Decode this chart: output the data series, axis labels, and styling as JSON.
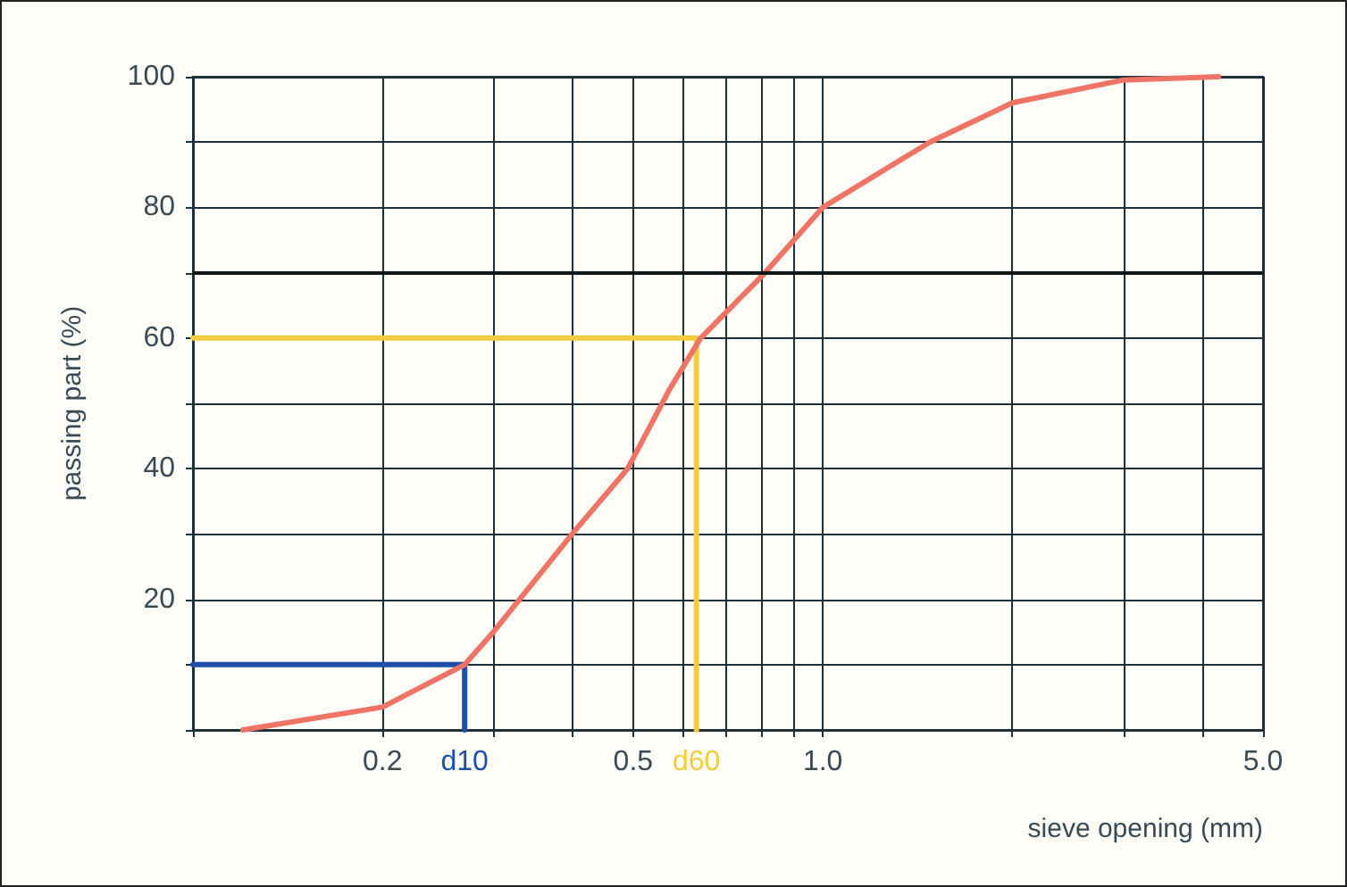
{
  "chart_data": {
    "type": "line",
    "xlabel": "sieve opening (mm)",
    "ylabel": "passing part (%)",
    "log": "x",
    "grid": true,
    "marker": "none",
    "xlim": [
      0.1,
      5
    ],
    "ylim": [
      0,
      100
    ],
    "xticks": [
      {
        "value": 0.1,
        "label": null
      },
      {
        "value": 0.2,
        "label": "0.2"
      },
      {
        "value": 0.3,
        "label": null
      },
      {
        "value": 0.4,
        "label": null
      },
      {
        "value": 0.5,
        "label": "0.5"
      },
      {
        "value": 0.6,
        "label": null
      },
      {
        "value": 0.7,
        "label": null
      },
      {
        "value": 0.8,
        "label": null
      },
      {
        "value": 0.9,
        "label": null
      },
      {
        "value": 1,
        "label": "1.0"
      },
      {
        "value": 2,
        "label": null
      },
      {
        "value": 3,
        "label": null
      },
      {
        "value": 4,
        "label": null
      },
      {
        "value": 5,
        "label": "5.0"
      }
    ],
    "yticks": [
      {
        "value": 0,
        "label": null
      },
      {
        "value": 10,
        "label": null
      },
      20,
      {
        "value": 30,
        "label": null
      },
      40,
      {
        "value": 50,
        "label": null
      },
      60,
      {
        "value": 70,
        "label": null
      },
      80,
      {
        "value": 90,
        "label": null
      },
      100
    ],
    "ref_lines": [
      {
        "axis": "y",
        "value": 70,
        "color": "#101818"
      }
    ],
    "series": [
      {
        "color": "#ee7565",
        "x": [
          0.12,
          0.2,
          0.27,
          0.3,
          0.4,
          0.49,
          0.57,
          0.64,
          0.81,
          1.0,
          1.48,
          2,
          3,
          4.25
        ],
        "values": [
          0,
          3.5,
          10,
          15,
          30,
          40,
          52,
          60,
          70,
          80,
          90,
          96,
          99.5,
          100
        ]
      },
      {
        "name": "d10",
        "color": "#1f4fa8",
        "x": [
          0.1,
          0.27,
          0.27
        ],
        "values": [
          10,
          10,
          0
        ]
      },
      {
        "name": "d60",
        "color": "#f0cc40",
        "x": [
          0.1,
          0.63,
          0.63
        ],
        "values": [
          60,
          60,
          0
        ]
      }
    ]
  }
}
